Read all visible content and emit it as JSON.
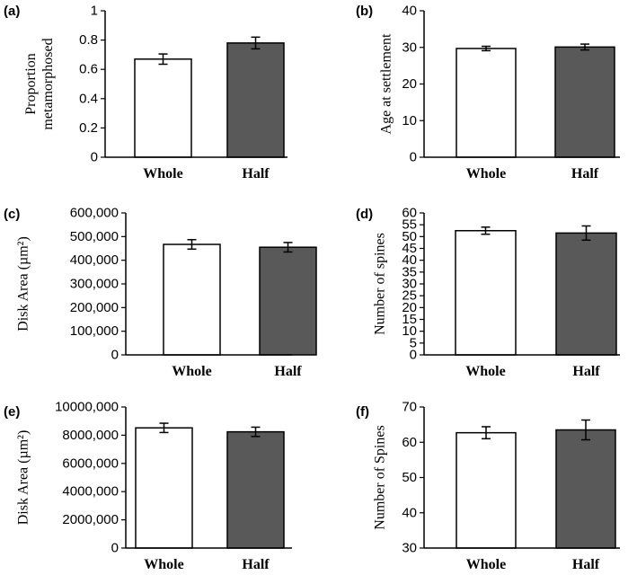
{
  "chart_data": [
    {
      "type": "bar",
      "panel": "(a)",
      "categories": [
        "Whole",
        "Half"
      ],
      "values": [
        0.67,
        0.78
      ],
      "errors": [
        0.035,
        0.04
      ],
      "ylabel_lines": [
        "Proportion",
        "metamorphosed"
      ],
      "ylim": [
        0,
        1
      ],
      "yticks": [
        0,
        0.2,
        0.4,
        0.6,
        0.8,
        1
      ],
      "ytick_labels": [
        "0",
        "0.2",
        "0.4",
        "0.6",
        "0.8",
        "1"
      ],
      "bar_colors": [
        "#ffffff",
        "#595959"
      ]
    },
    {
      "type": "bar",
      "panel": "(b)",
      "categories": [
        "Whole",
        "Half"
      ],
      "values": [
        29.7,
        30.1
      ],
      "errors": [
        0.6,
        0.8
      ],
      "ylabel_lines": [
        "Age at settlement"
      ],
      "ylim": [
        0,
        40
      ],
      "yticks": [
        0,
        10,
        20,
        30,
        40
      ],
      "ytick_labels": [
        "0",
        "10",
        "20",
        "30",
        "40"
      ],
      "bar_colors": [
        "#ffffff",
        "#595959"
      ]
    },
    {
      "type": "bar",
      "panel": "(c)",
      "categories": [
        "Whole",
        "Half"
      ],
      "values": [
        467000,
        455000
      ],
      "errors": [
        20000,
        20000
      ],
      "ylabel_lines": [
        "Disk Area (µm²)"
      ],
      "ylim": [
        0,
        600000
      ],
      "yticks": [
        0,
        100000,
        200000,
        300000,
        400000,
        500000,
        600000
      ],
      "ytick_labels": [
        "0",
        "100,000",
        "200,000",
        "300,000",
        "400,000",
        "500,000",
        "600,000"
      ],
      "bar_colors": [
        "#ffffff",
        "#595959"
      ]
    },
    {
      "type": "bar",
      "panel": "(d)",
      "categories": [
        "Whole",
        "Half"
      ],
      "values": [
        52.5,
        51.5
      ],
      "errors": [
        1.5,
        3
      ],
      "ylabel_lines": [
        "Number of spines"
      ],
      "ylim": [
        0,
        60
      ],
      "yticks": [
        0,
        5,
        10,
        15,
        20,
        25,
        30,
        35,
        40,
        45,
        50,
        55,
        60
      ],
      "ytick_labels": [
        "0",
        "5",
        "10",
        "15",
        "20",
        "25",
        "30",
        "35",
        "40",
        "45",
        "50",
        "55",
        "60"
      ],
      "bar_colors": [
        "#ffffff",
        "#595959"
      ]
    },
    {
      "type": "bar",
      "panel": "(e)",
      "categories": [
        "Whole",
        "Half"
      ],
      "values": [
        8520000,
        8240000
      ],
      "errors": [
        330000,
        330000
      ],
      "ylabel_lines": [
        "Disk Area (µm²)"
      ],
      "ylim": [
        0,
        10000000
      ],
      "yticks": [
        0,
        2000000,
        4000000,
        6000000,
        8000000,
        10000000
      ],
      "ytick_labels": [
        "0",
        "2000,000",
        "4000,000",
        "6000,000",
        "8000,000",
        "10000,000"
      ],
      "bar_colors": [
        "#ffffff",
        "#595959"
      ]
    },
    {
      "type": "bar",
      "panel": "(f)",
      "categories": [
        "Whole",
        "Half"
      ],
      "values": [
        62.7,
        63.5
      ],
      "errors": [
        1.7,
        2.8
      ],
      "ylabel_lines": [
        "Number of Spines"
      ],
      "ylim": [
        30,
        70
      ],
      "yticks": [
        30,
        40,
        50,
        60,
        70
      ],
      "ytick_labels": [
        "30",
        "40",
        "50",
        "60",
        "70"
      ],
      "bar_colors": [
        "#ffffff",
        "#595959"
      ]
    }
  ]
}
